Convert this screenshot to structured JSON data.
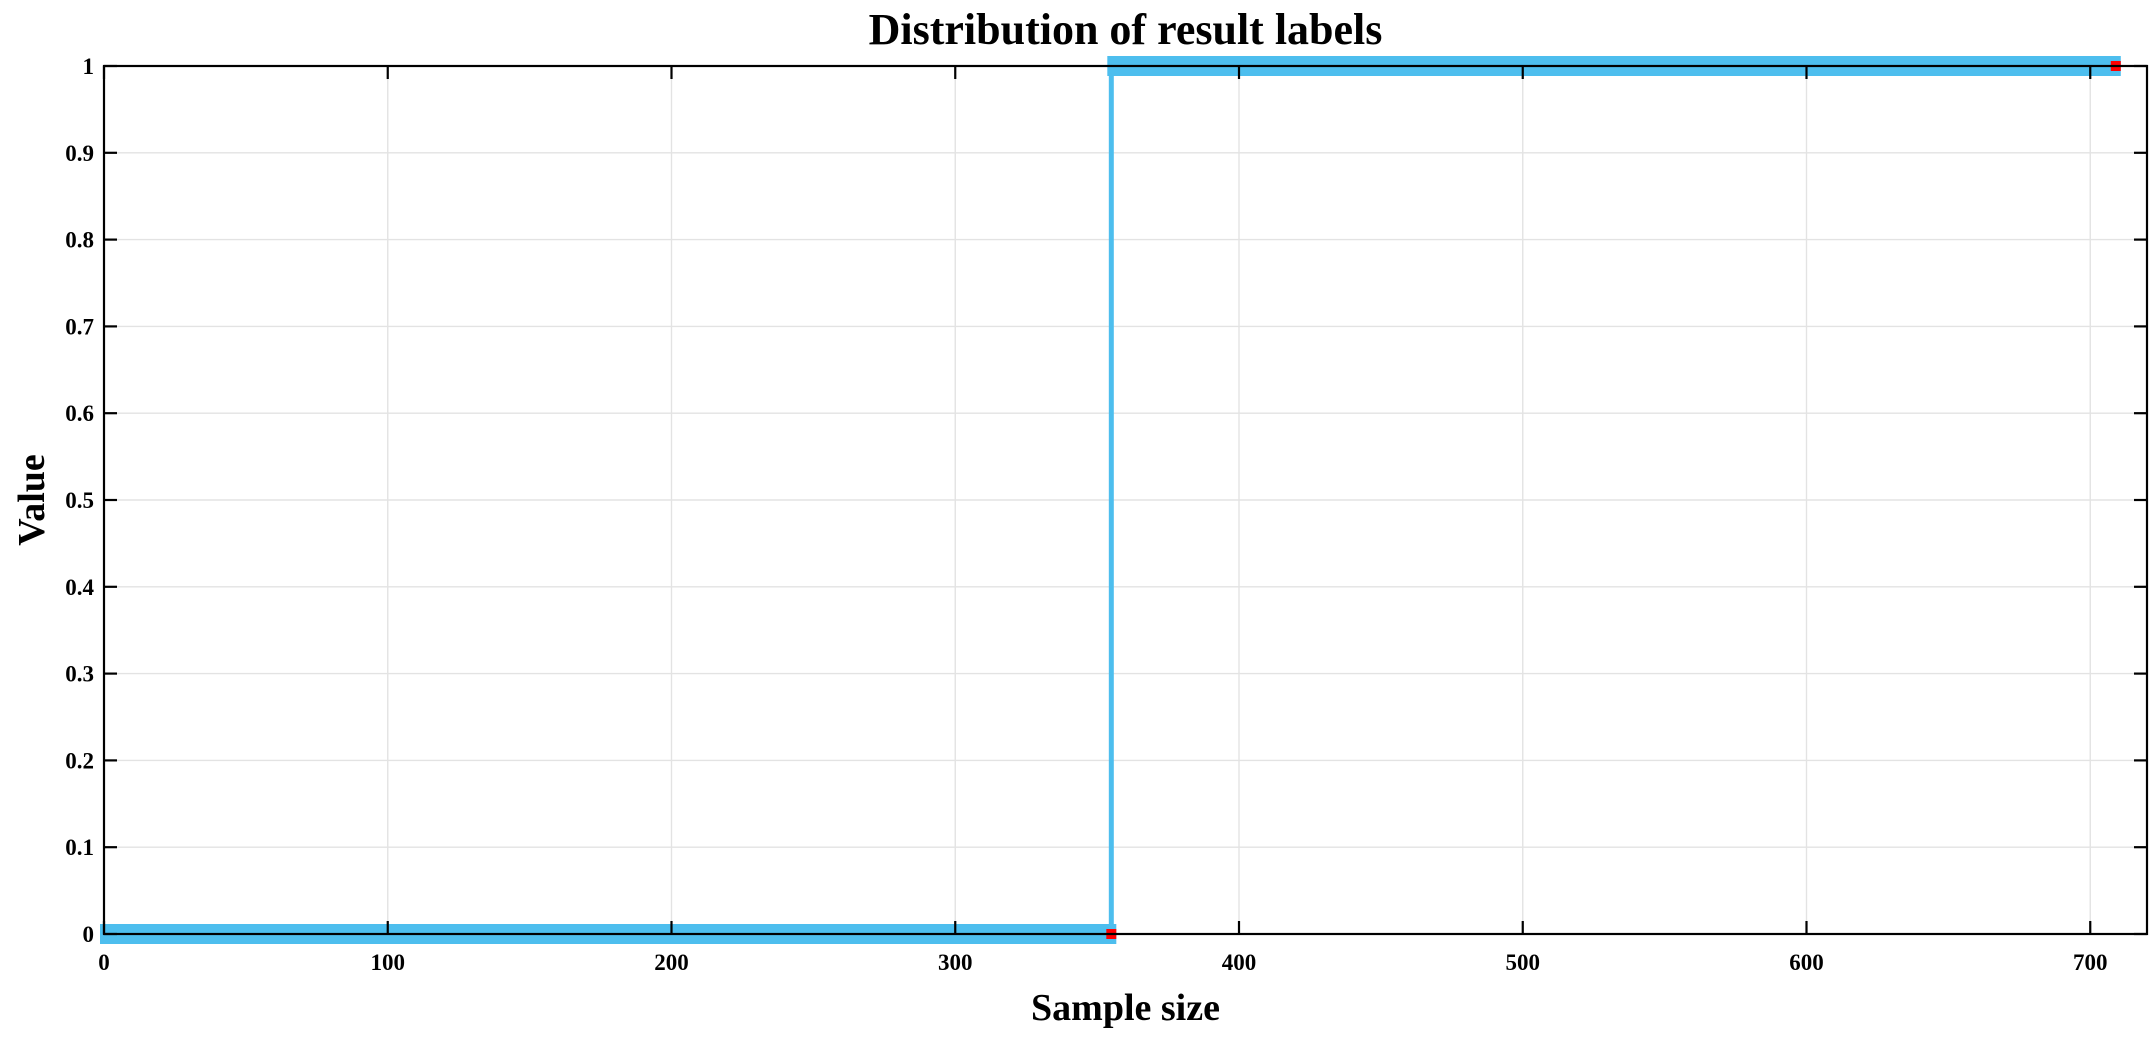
{
  "chart_data": {
    "type": "line",
    "title": "Distribution of result labels",
    "xlabel": "Sample size",
    "ylabel": "Value",
    "xlim": [
      0,
      720
    ],
    "ylim": [
      0,
      1
    ],
    "xticks": [
      0,
      100,
      200,
      300,
      400,
      500,
      600,
      700
    ],
    "xtick_labels": [
      "0",
      "100",
      "200",
      "300",
      "400",
      "500",
      "600",
      "700"
    ],
    "yticks": [
      0,
      0.1,
      0.2,
      0.3,
      0.4,
      0.5,
      0.6,
      0.7,
      0.8,
      0.9,
      1
    ],
    "ytick_labels": [
      "0",
      "0.1",
      "0.2",
      "0.3",
      "0.4",
      "0.5",
      "0.6",
      "0.7",
      "0.8",
      "0.9",
      "1"
    ],
    "grid": true,
    "series": [
      {
        "color": "#4dbeee",
        "segments": [
          {
            "x": [
              0,
              355
            ],
            "y": [
              0,
              0
            ]
          },
          {
            "x": [
              355,
              709
            ],
            "y": [
              1,
              1
            ]
          }
        ],
        "transition_x": 355
      }
    ],
    "markers": [
      {
        "x": 355,
        "y": 0,
        "color": "#ff0000"
      },
      {
        "x": 709,
        "y": 1,
        "color": "#ff0000"
      }
    ]
  }
}
